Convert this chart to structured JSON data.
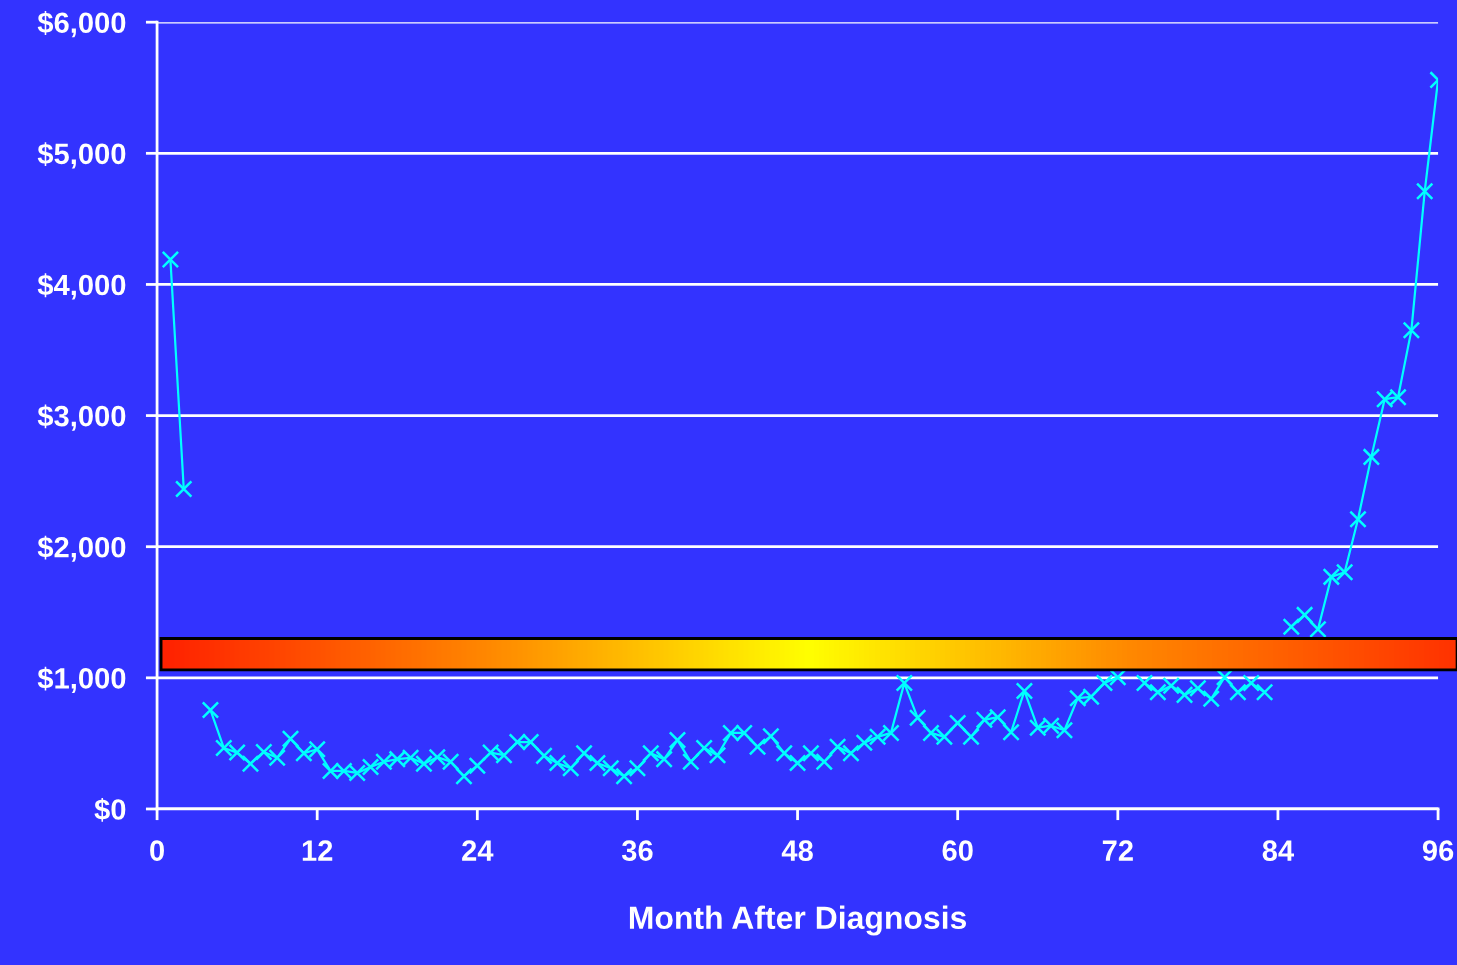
{
  "chart_data": {
    "type": "line",
    "xlabel": "Month After Diagnosis",
    "x": [
      1,
      2,
      3,
      4,
      5,
      6,
      7,
      8,
      9,
      10,
      11,
      12,
      13,
      14,
      15,
      16,
      17,
      18,
      19,
      20,
      21,
      22,
      23,
      24,
      25,
      26,
      27,
      28,
      29,
      30,
      31,
      32,
      33,
      34,
      35,
      36,
      37,
      38,
      39,
      40,
      41,
      42,
      43,
      44,
      45,
      46,
      47,
      48,
      49,
      50,
      51,
      52,
      53,
      54,
      55,
      56,
      57,
      58,
      59,
      60,
      61,
      62,
      63,
      64,
      65,
      66,
      67,
      68,
      69,
      70,
      71,
      72,
      73,
      74,
      75,
      76,
      77,
      78,
      79,
      80,
      81,
      82,
      83,
      84,
      85,
      86,
      87,
      88,
      89,
      90,
      91,
      92,
      93,
      94,
      95,
      96
    ],
    "series": [
      {
        "color": "#00ffff",
        "values": [
          4190,
          2440,
          null,
          755,
          465,
          430,
          345,
          435,
          390,
          535,
          425,
          455,
          290,
          290,
          275,
          320,
          360,
          380,
          390,
          345,
          395,
          360,
          250,
          330,
          430,
          410,
          510,
          510,
          405,
          350,
          310,
          425,
          350,
          310,
          250,
          310,
          425,
          380,
          525,
          360,
          465,
          410,
          580,
          580,
          475,
          555,
          425,
          350,
          425,
          360,
          475,
          425,
          505,
          550,
          580,
          960,
          695,
          580,
          550,
          655,
          550,
          680,
          700,
          585,
          900,
          620,
          635,
          600,
          845,
          855,
          960,
          1005,
          null,
          960,
          890,
          940,
          870,
          920,
          840,
          1005,
          890,
          960,
          890,
          null,
          1390,
          1480,
          1370,
          1770,
          1805,
          2210,
          2685,
          3125,
          3140,
          3650,
          4710,
          5560
        ]
      }
    ],
    "xlim": [
      0,
      96
    ],
    "xticks": [
      0,
      12,
      24,
      36,
      48,
      60,
      72,
      84,
      96
    ],
    "ylim": [
      0,
      6000
    ],
    "yticks": [
      {
        "value": 0,
        "label": "$0"
      },
      {
        "value": 1000,
        "label": "$1,000"
      },
      {
        "value": 2000,
        "label": "$2,000"
      },
      {
        "value": 3000,
        "label": "$3,000"
      },
      {
        "value": 4000,
        "label": "$4,000"
      },
      {
        "value": 5000,
        "label": "$5,000"
      },
      {
        "value": 6000,
        "label": "$6,000"
      }
    ],
    "bands": [
      {
        "axis": "y",
        "from": 1060,
        "to": 1300
      }
    ],
    "grid": "y",
    "marker": "cross",
    "line_style": "solid"
  }
}
